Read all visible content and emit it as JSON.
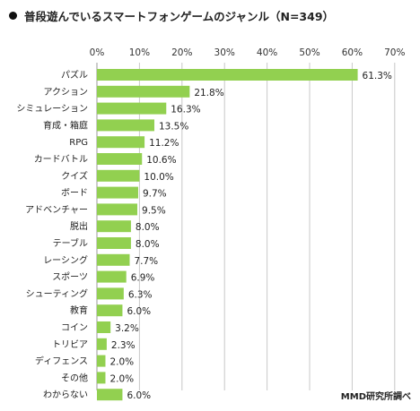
{
  "title": "普段遊んでいるスマートフォンゲームのジャンル（N=349）",
  "source": "MMD研究所調べ",
  "chart_data": {
    "type": "bar",
    "orientation": "horizontal",
    "title": "普段遊んでいるスマートフォンゲームのジャンル（N=349）",
    "xlim": [
      0,
      70
    ],
    "ticks": [
      "0%",
      "10%",
      "20%",
      "30%",
      "40%",
      "50%",
      "60%",
      "70%"
    ],
    "tick_values": [
      0,
      10,
      20,
      30,
      40,
      50,
      60,
      70
    ],
    "grid": true,
    "bar_color": "#92d050",
    "categories": [
      "パズル",
      "アクション",
      "シミュレーション",
      "育成・箱庭",
      "RPG",
      "カードバトル",
      "クイズ",
      "ボード",
      "アドベンチャー",
      "脱出",
      "テーブル",
      "レーシング",
      "スポーツ",
      "シューティング",
      "教育",
      "コイン",
      "トリビア",
      "ディフェンス",
      "その他",
      "わからない"
    ],
    "values": [
      61.3,
      21.8,
      16.3,
      13.5,
      11.2,
      10.6,
      10.0,
      9.7,
      9.5,
      8.0,
      8.0,
      7.7,
      6.9,
      6.3,
      6.0,
      3.2,
      2.3,
      2.0,
      2.0,
      6.0
    ],
    "value_labels": [
      "61.3%",
      "21.8%",
      "16.3%",
      "13.5%",
      "11.2%",
      "10.6%",
      "10.0%",
      "9.7%",
      "9.5%",
      "8.0%",
      "8.0%",
      "7.7%",
      "6.9%",
      "6.3%",
      "6.0%",
      "3.2%",
      "2.3%",
      "2.0%",
      "2.0%",
      "6.0%"
    ]
  }
}
